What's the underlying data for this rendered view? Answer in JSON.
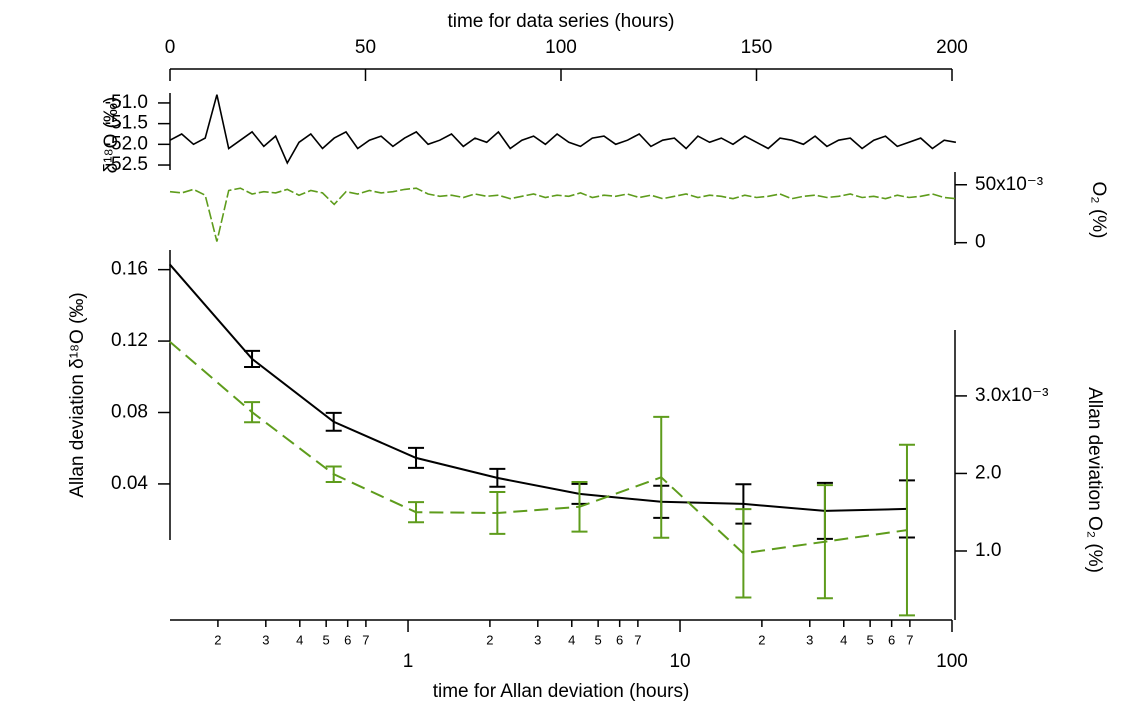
{
  "chart_data": [
    {
      "type": "line",
      "x_label": "time for data series (hours)",
      "y_label": "δ¹⁸O (‰)",
      "y2_label": "O₂ (%)",
      "xlim": [
        0,
        200
      ],
      "xticks": [
        0,
        50,
        100,
        150,
        200
      ],
      "ylim": [
        -52.62,
        -50.76
      ],
      "yticks": [
        {
          "value": -51,
          "label": "-51.0"
        },
        -51.5,
        {
          "value": -52,
          "label": "-52.0"
        },
        -52.5
      ],
      "y2lim": [
        -0.002,
        0.061
      ],
      "y2ticks": [
        0,
        {
          "value": 0.05,
          "label": "50x10⁻³"
        }
      ],
      "x": [
        0,
        3,
        6,
        9,
        12,
        15,
        18,
        21,
        24,
        27,
        30,
        33,
        36,
        39,
        42,
        45,
        48,
        51,
        54,
        57,
        60,
        63,
        66,
        69,
        72,
        75,
        78,
        81,
        84,
        87,
        90,
        93,
        96,
        99,
        102,
        105,
        108,
        111,
        114,
        117,
        120,
        123,
        126,
        129,
        132,
        135,
        138,
        141,
        144,
        147,
        150,
        153,
        156,
        159,
        162,
        165,
        168,
        171,
        174,
        177,
        180,
        183,
        186,
        189,
        192,
        195,
        198,
        201
      ],
      "series": [
        {
          "color": "#000000",
          "dashed": false,
          "axis": "y",
          "values": [
            -51.9,
            -51.75,
            -52.0,
            -51.85,
            -50.8,
            -52.1,
            -51.9,
            -51.7,
            -52.05,
            -51.8,
            -52.45,
            -51.95,
            -51.75,
            -52.1,
            -51.85,
            -51.7,
            -52.1,
            -51.9,
            -51.8,
            -52.05,
            -51.85,
            -51.7,
            -52.0,
            -51.9,
            -51.75,
            -52.05,
            -51.85,
            -51.95,
            -51.7,
            -52.1,
            -51.9,
            -51.8,
            -52.0,
            -51.75,
            -51.95,
            -52.05,
            -51.85,
            -51.8,
            -52.0,
            -51.9,
            -51.75,
            -52.05,
            -51.9,
            -51.85,
            -52.1,
            -51.8,
            -51.95,
            -51.85,
            -52.0,
            -51.8,
            -51.95,
            -52.1,
            -51.85,
            -51.9,
            -52.0,
            -51.8,
            -52.05,
            -51.9,
            -51.85,
            -52.1,
            -51.9,
            -51.8,
            -52.05,
            -51.95,
            -51.85,
            -52.1,
            -51.9,
            -51.95
          ]
        },
        {
          "color": "#5e9c1c",
          "dashed": true,
          "axis": "y2",
          "values": [
            0.044,
            0.043,
            0.046,
            0.041,
            0.001,
            0.045,
            0.047,
            0.042,
            0.044,
            0.043,
            0.046,
            0.041,
            0.045,
            0.043,
            0.033,
            0.044,
            0.042,
            0.045,
            0.043,
            0.044,
            0.046,
            0.047,
            0.042,
            0.04,
            0.041,
            0.039,
            0.042,
            0.04,
            0.041,
            0.038,
            0.04,
            0.042,
            0.039,
            0.041,
            0.04,
            0.043,
            0.039,
            0.041,
            0.04,
            0.042,
            0.039,
            0.041,
            0.038,
            0.04,
            0.042,
            0.039,
            0.041,
            0.04,
            0.038,
            0.041,
            0.039,
            0.04,
            0.042,
            0.038,
            0.04,
            0.041,
            0.039,
            0.04,
            0.042,
            0.039,
            0.04,
            0.038,
            0.041,
            0.039,
            0.04,
            0.042,
            0.039,
            0.038
          ]
        }
      ]
    },
    {
      "type": "line",
      "x_label": "time for Allan deviation (hours)",
      "y_label": "Allan deviation δ¹⁸O (‰)",
      "y2_label": "Allan deviation O₂ (%)",
      "x_scale": "log",
      "xlim": [
        0.1333,
        100
      ],
      "xticks": [
        {
          "value": 0.2,
          "label": "2"
        },
        {
          "value": 0.3,
          "label": "3"
        },
        {
          "value": 0.4,
          "label": "4"
        },
        {
          "value": 0.5,
          "label": "5"
        },
        {
          "value": 0.6,
          "label": "6"
        },
        {
          "value": 0.7,
          "label": "7"
        },
        1,
        2,
        3,
        4,
        5,
        6,
        7,
        10,
        {
          "value": 20,
          "label": "2"
        },
        {
          "value": 30,
          "label": "3"
        },
        {
          "value": 40,
          "label": "4"
        },
        {
          "value": 50,
          "label": "5"
        },
        {
          "value": 60,
          "label": "6"
        },
        {
          "value": 70,
          "label": "7"
        },
        100
      ],
      "ylim": [
        0.0086,
        0.171
      ],
      "yticks": [
        0.04,
        0.08,
        0.12,
        0.16
      ],
      "y2lim": [
        0.00011,
        0.00385
      ],
      "y2ticks": [
        {
          "value": 0.001,
          "label": "1.0"
        },
        {
          "value": 0.002,
          "label": "2.0"
        },
        {
          "value": 0.003,
          "label": "3.0x10⁻³"
        }
      ],
      "x": [
        0.133,
        0.267,
        0.533,
        1.07,
        2.13,
        4.27,
        8.53,
        17.1,
        34.1,
        68.3
      ],
      "series": [
        {
          "color": "#000000",
          "dashed": false,
          "axis": "y",
          "values": [
            0.163,
            0.11,
            0.0748,
            0.0546,
            0.0434,
            0.0344,
            0.03,
            0.0288,
            0.0249,
            0.026
          ],
          "errors": [
            null,
            0.0045,
            0.005,
            0.0056,
            0.005,
            0.0056,
            0.009,
            0.011,
            0.0157,
            0.016
          ]
        },
        {
          "color": "#5e9c1c",
          "dashed": true,
          "axis": "y2",
          "values": [
            0.0037,
            0.00279,
            0.00199,
            0.0015,
            0.00149,
            0.00157,
            0.00195,
            0.00097,
            0.00112,
            0.00127
          ],
          "errors": [
            null,
            0.00013,
            0.0001,
            0.00013,
            0.00027,
            0.00032,
            0.00078,
            0.00057,
            0.00073,
            0.0011
          ]
        }
      ]
    }
  ]
}
